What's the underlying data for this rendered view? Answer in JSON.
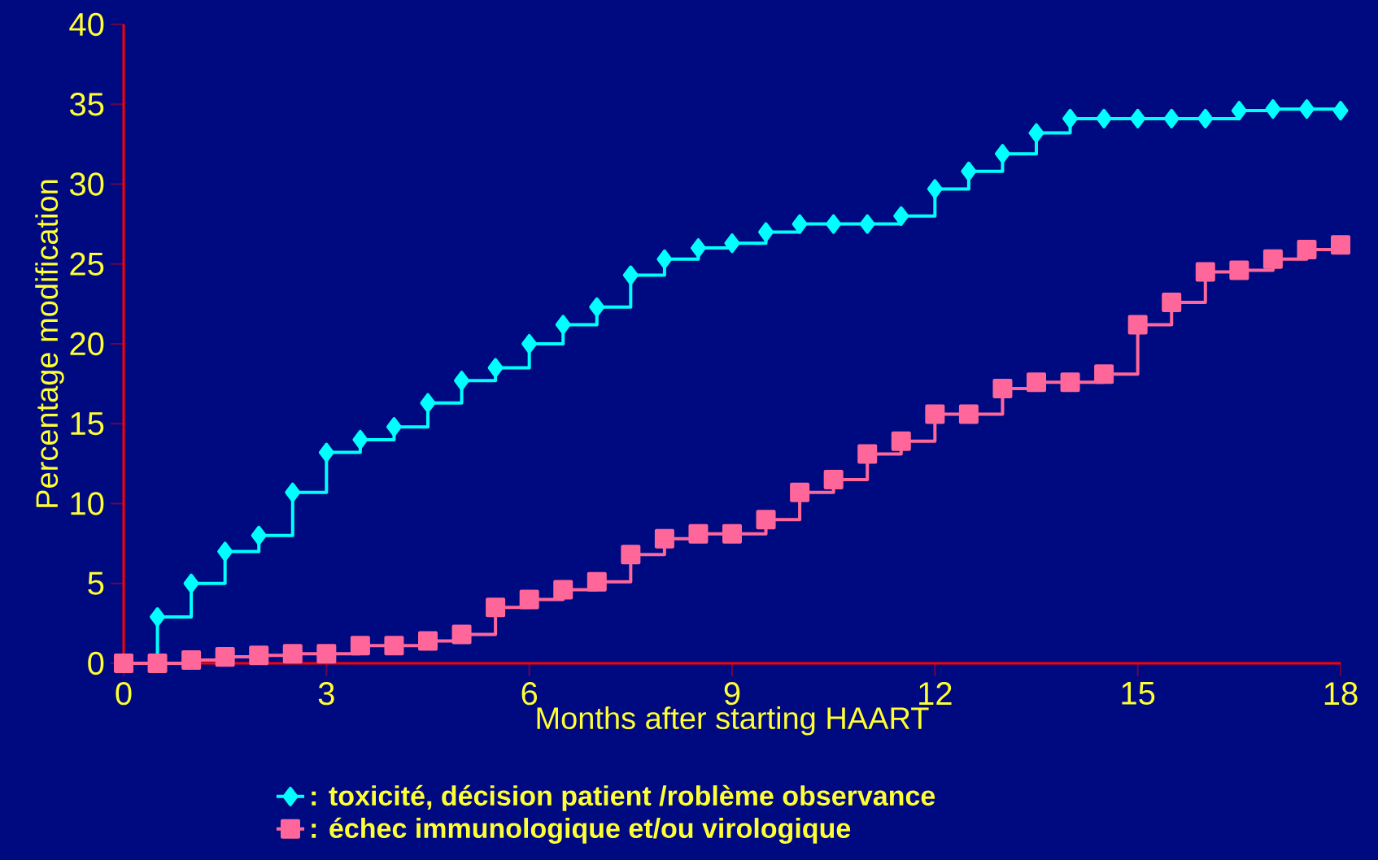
{
  "chart_data": {
    "type": "step",
    "xlabel": "Months after starting HAART",
    "ylabel": "Percentage modification",
    "xlim": [
      0,
      18
    ],
    "ylim": [
      0,
      40
    ],
    "xticks": [
      0,
      3,
      6,
      9,
      12,
      15,
      18
    ],
    "yticks": [
      0,
      5,
      10,
      15,
      20,
      25,
      30,
      35,
      40
    ],
    "grid": false,
    "legend": "bottom",
    "line_style": "solid",
    "x": [
      0,
      0.5,
      1,
      1.5,
      2,
      2.5,
      3,
      3.5,
      4,
      4.5,
      5,
      5.5,
      6,
      6.5,
      7,
      7.5,
      8,
      8.5,
      9,
      9.5,
      10,
      10.5,
      11,
      11.5,
      12,
      12.5,
      13,
      13.5,
      14,
      14.5,
      15,
      15.5,
      16,
      16.5,
      17,
      17.5,
      18
    ],
    "series": [
      {
        "name": ": toxicité, décision patient /roblème observance",
        "color": "#00ffff",
        "marker": "diamond",
        "values": [
          0,
          2.9,
          5.0,
          7.0,
          8.0,
          10.7,
          13.2,
          14.0,
          14.8,
          16.3,
          17.7,
          18.5,
          20.0,
          21.2,
          22.3,
          24.3,
          25.3,
          26.0,
          26.3,
          27.0,
          27.5,
          27.5,
          27.5,
          28.0,
          29.7,
          30.8,
          31.9,
          33.2,
          34.1,
          34.1,
          34.1,
          34.1,
          34.1,
          34.6,
          34.7,
          34.7,
          34.6
        ]
      },
      {
        "name": ": échec immunologique et/ou virologique",
        "color": "#ff6699",
        "marker": "square",
        "values": [
          0,
          0,
          0.2,
          0.4,
          0.5,
          0.6,
          0.6,
          1.1,
          1.1,
          1.4,
          1.8,
          3.5,
          4.0,
          4.6,
          5.1,
          6.8,
          7.8,
          8.1,
          8.1,
          9.0,
          10.7,
          11.5,
          13.1,
          13.9,
          15.6,
          15.6,
          17.2,
          17.6,
          17.6,
          18.1,
          21.2,
          22.6,
          24.5,
          24.6,
          25.3,
          25.9,
          26.2
        ]
      }
    ]
  }
}
